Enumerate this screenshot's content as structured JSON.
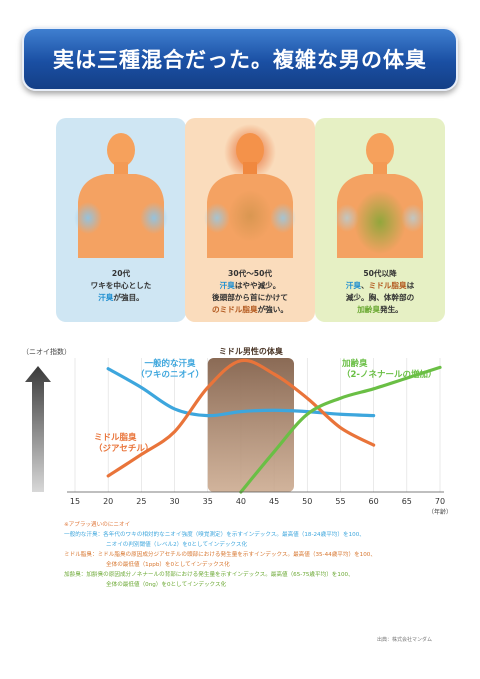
{
  "banner": {
    "title": "実は三種混合だった。複雑な男の体臭"
  },
  "panels": [
    {
      "bg": "#cfe6f3",
      "lines": [
        [
          {
            "t": "20代",
            "c": ""
          }
        ],
        [
          {
            "t": "ワキを中心とした",
            "c": ""
          }
        ],
        [
          {
            "t": "汗臭",
            "c": "hl-blue"
          },
          {
            "t": "が強目。",
            "c": ""
          }
        ]
      ]
    },
    {
      "bg": "#fadcbc",
      "lines": [
        [
          {
            "t": "30代〜50代",
            "c": ""
          }
        ],
        [
          {
            "t": "汗臭",
            "c": "hl-blue"
          },
          {
            "t": "はやや減少。",
            "c": ""
          }
        ],
        [
          {
            "t": "後頭部から首にかけて",
            "c": ""
          }
        ],
        [
          {
            "t": "のミドル脂臭",
            "c": "hl-brown"
          },
          {
            "t": "が強い。",
            "c": ""
          }
        ]
      ]
    },
    {
      "bg": "#e6f0c4",
      "lines": [
        [
          {
            "t": "50代以降",
            "c": ""
          }
        ],
        [
          {
            "t": "汗臭",
            "c": "hl-blue"
          },
          {
            "t": "、",
            "c": ""
          },
          {
            "t": "ミドル脂臭",
            "c": "hl-brown"
          },
          {
            "t": "は",
            "c": ""
          }
        ],
        [
          {
            "t": "減少。胸、体幹部の",
            "c": ""
          }
        ],
        [
          {
            "t": "加齢臭",
            "c": "hl-green"
          },
          {
            "t": "発生。",
            "c": ""
          }
        ]
      ]
    }
  ],
  "chart_data": {
    "type": "line",
    "ylabel": "（ニオイ指数）",
    "xunit": "（年齢）",
    "x_ticks": [
      15,
      20,
      25,
      30,
      35,
      40,
      45,
      50,
      55,
      60,
      65,
      70
    ],
    "xlim": [
      15,
      70
    ],
    "ylim": [
      0,
      100
    ],
    "grid": true,
    "highlight": {
      "label": "ミドル男性の体臭",
      "from": 35,
      "to": 48
    },
    "series": [
      {
        "name": "一般的な汗臭（ワキのニオイ）",
        "label_lines": [
          "一般的な汗臭",
          "（ワキのニオイ）"
        ],
        "color": "#3da6dd",
        "x": [
          20,
          25,
          30,
          35,
          40,
          45,
          50,
          55,
          60
        ],
        "y": [
          92,
          78,
          62,
          57,
          60,
          61,
          60,
          58,
          57
        ]
      },
      {
        "name": "ミドル脂臭（ジアセチル）",
        "label_lines": [
          "ミドル脂臭",
          "（ジアセチル）"
        ],
        "color": "#e9743a",
        "x": [
          20,
          25,
          30,
          35,
          40,
          45,
          50,
          55,
          60
        ],
        "y": [
          12,
          28,
          45,
          78,
          98,
          88,
          70,
          48,
          35
        ]
      },
      {
        "name": "加齢臭（2-ノネナールの増加）",
        "label_lines": [
          "加齢臭",
          "（2-ノネナールの増加）"
        ],
        "color": "#6abf45",
        "x": [
          40,
          45,
          50,
          55,
          60,
          65,
          70
        ],
        "y": [
          0,
          30,
          58,
          70,
          77,
          85,
          93
        ]
      }
    ]
  },
  "notes": [
    "※アプラッ週いのにニオイ",
    "一般的な汗臭：各年代のワキの相対的なニオイ強度（嗅覚測定）を示すインデックス。最高値（18-24歳平均）を100、",
    "ニオイの判別閾値（レベル2）を0としてインデックス化",
    "ミドル脂臭：ミドル脂臭の原因成分ジアセチルの頭部における発生量を示すインデックス。最高値（35-44歳平均）を100、",
    "全体の最低値（1ppb）を0としてインデックス化",
    "加齢臭：加齢臭の原因成分ノネナールの背部における発生量を示すインデックス。最高値（65-75歳平均）を100、",
    "全体の最低値（0ng）を0としてインデックス化"
  ],
  "credit": "出典：株式会社マンダム"
}
